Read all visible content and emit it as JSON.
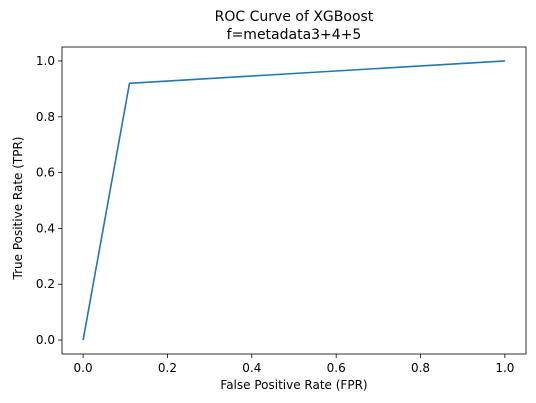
{
  "chart_data": {
    "type": "line",
    "title": "ROC Curve of XGBoost",
    "subtitle": "f=metadata3+4+5",
    "xlabel": "False Positive Rate (FPR)",
    "ylabel": "True Positive Rate (TPR)",
    "xlim": [
      -0.05,
      1.05
    ],
    "ylim": [
      -0.05,
      1.05
    ],
    "xticks": [
      0.0,
      0.2,
      0.4,
      0.6,
      0.8,
      1.0
    ],
    "yticks": [
      0.0,
      0.2,
      0.4,
      0.6,
      0.8,
      1.0
    ],
    "xtick_labels": [
      "0.0",
      "0.2",
      "0.4",
      "0.6",
      "0.8",
      "1.0"
    ],
    "ytick_labels": [
      "0.0",
      "0.2",
      "0.4",
      "0.6",
      "0.8",
      "1.0"
    ],
    "grid": false,
    "series": [
      {
        "color": "#1f77b4",
        "x": [
          0.0,
          0.11,
          1.0
        ],
        "y": [
          0.0,
          0.92,
          1.0
        ]
      }
    ]
  }
}
